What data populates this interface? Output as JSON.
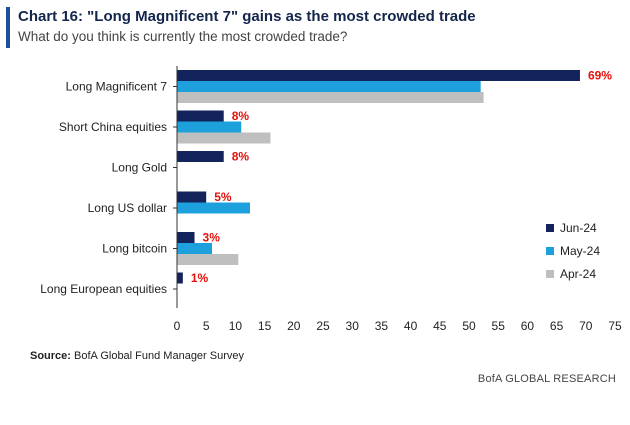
{
  "header": {
    "title": "Chart 16: \"Long Magnificent 7\" gains as the most crowded trade",
    "subtitle": "What do you think is currently the most crowded trade?"
  },
  "footer": {
    "source_label": "Source:",
    "source_text": " BofA Global Fund Manager Survey",
    "brand": "BofA GLOBAL RESEARCH"
  },
  "colors": {
    "accent": "#1f4e9c",
    "jun": "#13235b",
    "may": "#1ea0dc",
    "apr": "#bfbfbf",
    "label": "#e3120b"
  },
  "chart_data": {
    "type": "bar",
    "orientation": "horizontal",
    "title": "Chart 16: \"Long Magnificent 7\" gains as the most crowded trade",
    "subtitle": "What do you think is currently the most crowded trade?",
    "categories": [
      "Long Magnificent 7",
      "Short China equities",
      "Long Gold",
      "Long US dollar",
      "Long bitcoin",
      "Long European equities"
    ],
    "series": [
      {
        "name": "Jun-24",
        "values": [
          69,
          8,
          8,
          5,
          3,
          1
        ]
      },
      {
        "name": "May-24",
        "values": [
          52,
          11,
          null,
          12.5,
          6,
          null
        ]
      },
      {
        "name": "Apr-24",
        "values": [
          52.5,
          16,
          null,
          null,
          10.5,
          null
        ]
      }
    ],
    "data_labels": [
      "69%",
      "8%",
      "8%",
      "5%",
      "3%",
      "1%"
    ],
    "xlim": [
      0,
      75
    ],
    "xticks": [
      0,
      5,
      10,
      15,
      20,
      25,
      30,
      35,
      40,
      45,
      50,
      55,
      60,
      65,
      70,
      75
    ],
    "legend": [
      "Jun-24",
      "May-24",
      "Apr-24"
    ],
    "legend_position": "right",
    "grid": false
  }
}
